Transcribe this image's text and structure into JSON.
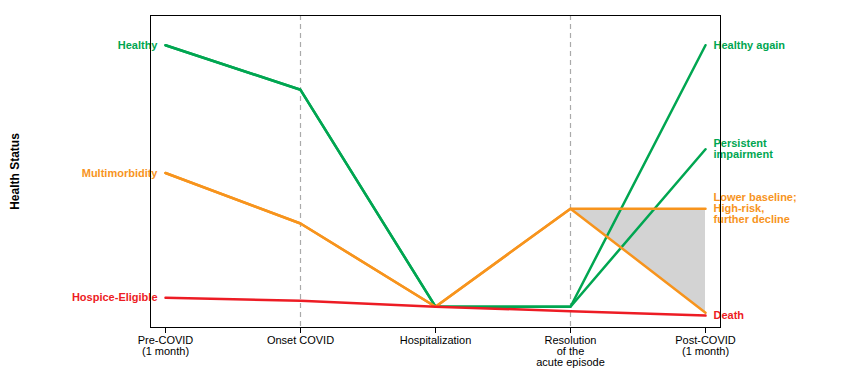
{
  "chart_data": {
    "type": "line",
    "ylabel": "Health Status",
    "categories": [
      "Pre-COVID\n(1 month)",
      "Onset COVID",
      "Hospitalization",
      "Resolution\nof the\nacute episode",
      "Post-COVID\n(1 month)"
    ],
    "series": [
      {
        "color": "#00a651",
        "values": [
          0.95,
          0.8,
          0.07,
          0.07,
          0.95
        ]
      },
      {
        "color": "#00a651",
        "values": [
          0.95,
          0.8,
          0.07,
          0.07,
          0.6
        ]
      },
      {
        "color": "#f7941d",
        "values": [
          0.52,
          0.35,
          0.07,
          0.4,
          0.4
        ]
      },
      {
        "color": "#f7941d",
        "values": [
          0.52,
          0.35,
          0.07,
          0.4,
          0.05
        ]
      },
      {
        "color": "#ed1c24",
        "values": [
          0.1,
          0.09,
          0.07,
          0.055,
          0.04
        ]
      }
    ],
    "fill_between": {
      "x": [
        "Resolution\nof the\nacute episode",
        "Post-COVID\n(1 month)"
      ],
      "y1": [
        0.4,
        0.4
      ],
      "y2": [
        0.4,
        0.05
      ],
      "color": "#c8c8c8"
    },
    "vlines": [
      {
        "x": "Onset COVID",
        "color": "#aaaaaa",
        "line_style": "dashed"
      },
      {
        "x": "Resolution\nof the\nacute episode",
        "color": "#aaaaaa",
        "line_style": "dashed"
      }
    ],
    "annotations": [
      {
        "text": "Healthy",
        "x": "Pre-COVID\n(1 month)",
        "y": 0.95,
        "color": "#00a651"
      },
      {
        "text": "Multimorbidity",
        "x": "Pre-COVID\n(1 month)",
        "y": 0.52,
        "color": "#f7941d"
      },
      {
        "text": "Hospice-Eligible",
        "x": "Pre-COVID\n(1 month)",
        "y": 0.1,
        "color": "#ed1c24"
      },
      {
        "text": "Healthy again",
        "x": "Post-COVID\n(1 month)",
        "y": 0.95,
        "color": "#00a651"
      },
      {
        "text": "Persistent\nimpairment",
        "x": "Post-COVID\n(1 month)",
        "y": 0.6,
        "color": "#00a651"
      },
      {
        "text": "Lower baseline;\nHigh-risk,\nfurther decline",
        "x": "Post-COVID\n(1 month)",
        "y": 0.4,
        "color": "#f7941d"
      },
      {
        "text": "Death",
        "x": "Post-COVID\n(1 month)",
        "y": 0.04,
        "color": "#ed1c24"
      }
    ],
    "ylim": [
      0.0,
      1.05
    ],
    "yticks": [],
    "tick_labels": "x"
  }
}
